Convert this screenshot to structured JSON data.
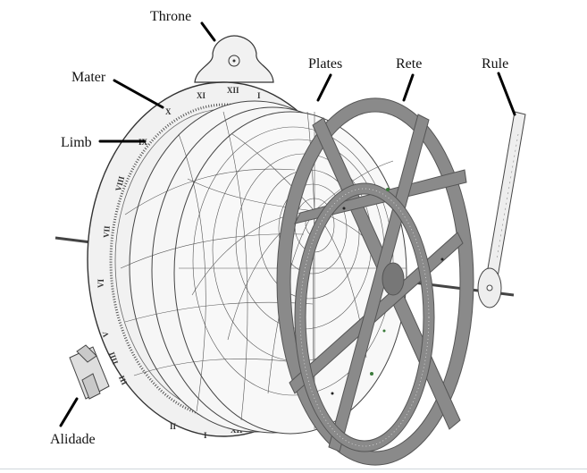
{
  "labels": {
    "throne": "Throne",
    "mater": "Mater",
    "limb": "Limb",
    "plates": "Plates",
    "rete": "Rete",
    "rule": "Rule",
    "alidade": "Alidade"
  },
  "numerals": [
    "XI",
    "XII",
    "I",
    "X",
    "IX",
    "VIII",
    "VII",
    "VI",
    "V",
    "IIII",
    "III",
    "II",
    "I",
    "XII"
  ],
  "colors": {
    "rete": "#8a8a8a",
    "line": "#000000",
    "plate": "#f4f4f4"
  }
}
